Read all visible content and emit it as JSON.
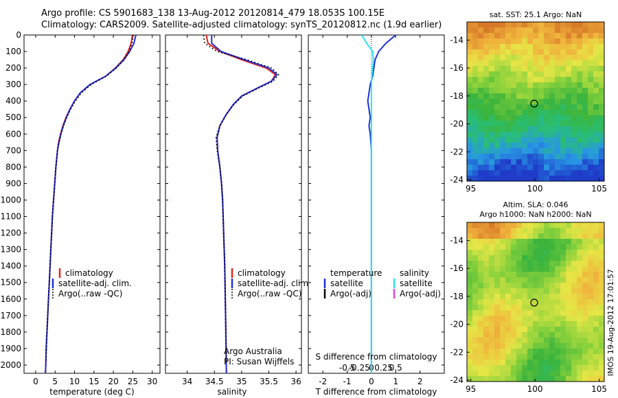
{
  "title": {
    "line1": "Argo profile: CS 5901683_138 13-Aug-2012 20120814_479 18.053S 100.15E",
    "line2": "Climatology: CARS2009. Satellite-adjusted climatology: synTS_20120812.nc (1.9d earlier)"
  },
  "colors": {
    "climatology": "#e8201c",
    "satellite": "#1f2fd6",
    "argo": "#000000",
    "satellite_salinity": "#27e6f0",
    "argo_salinity": "#e040e0"
  },
  "stamp": "IMOS 19-Aug-2012 17:01:57",
  "panels": {
    "temperature": {
      "xlabel": "temperature (deg C)",
      "legend": [
        "climatology",
        "satellite-adj. clim.",
        "Argo(..raw -QC)"
      ]
    },
    "salinity": {
      "xlabel": "salinity",
      "legend": [
        "climatology",
        "satellite-adj. clim.",
        "Argo(..raw -QC)"
      ],
      "credit1": "Argo Australia",
      "credit2": "PI: Susan Wijffels"
    },
    "difference": {
      "xlabel_bottom": "T difference from climatology",
      "xlabel_top": "S difference from climatology",
      "legend_temp_header": "temperature",
      "legend_sal_header": "salinity",
      "legend_temp": [
        "satellite",
        "Argo(-adj)"
      ],
      "legend_sal": [
        "satellite",
        "Argo(-adj)"
      ]
    }
  },
  "maps": {
    "sst": {
      "title1": "sat. SST: 25.1  Argo: NaN"
    },
    "sla": {
      "title1": "Altim. SLA: 0.046",
      "title2": "Argo h1000: NaN h2000: NaN"
    }
  },
  "chart_data": [
    {
      "type": "line",
      "name": "temperature profile",
      "xlabel": "temperature (deg C)",
      "ylabel": "",
      "xlim": [
        -3,
        32
      ],
      "ylim": [
        2050,
        0
      ],
      "xticks": [
        0,
        5,
        10,
        15,
        20,
        25,
        30
      ],
      "yticks": [
        0,
        100,
        200,
        300,
        400,
        500,
        600,
        700,
        800,
        900,
        1000,
        1100,
        1200,
        1300,
        1400,
        1500,
        1600,
        1700,
        1800,
        1900,
        2000
      ],
      "series": [
        {
          "name": "climatology",
          "points": [
            [
              24.9,
              0
            ],
            [
              24.6,
              50
            ],
            [
              23.8,
              100
            ],
            [
              22.5,
              150
            ],
            [
              20.5,
              200
            ],
            [
              18.0,
              250
            ],
            [
              14.0,
              300
            ],
            [
              11.5,
              350
            ],
            [
              10.0,
              400
            ],
            [
              8.8,
              450
            ],
            [
              7.8,
              500
            ],
            [
              7.0,
              550
            ],
            [
              6.4,
              600
            ],
            [
              5.9,
              650
            ],
            [
              5.6,
              700
            ],
            [
              5.2,
              800
            ],
            [
              4.9,
              900
            ],
            [
              4.6,
              1000
            ],
            [
              4.3,
              1100
            ],
            [
              4.1,
              1200
            ],
            [
              3.9,
              1300
            ],
            [
              3.7,
              1400
            ],
            [
              3.5,
              1500
            ],
            [
              3.3,
              1600
            ],
            [
              3.1,
              1700
            ],
            [
              2.9,
              1800
            ],
            [
              2.7,
              1900
            ],
            [
              2.6,
              2000
            ],
            [
              2.5,
              2050
            ]
          ]
        },
        {
          "name": "satellite-adj. clim.",
          "points": [
            [
              25.8,
              0
            ],
            [
              25.3,
              50
            ],
            [
              24.2,
              100
            ],
            [
              22.7,
              150
            ],
            [
              20.6,
              200
            ],
            [
              18.0,
              250
            ],
            [
              14.0,
              300
            ],
            [
              11.5,
              350
            ],
            [
              10.0,
              400
            ],
            [
              8.8,
              450
            ],
            [
              7.9,
              500
            ],
            [
              7.1,
              550
            ],
            [
              6.5,
              600
            ],
            [
              6.0,
              650
            ],
            [
              5.6,
              700
            ],
            [
              5.2,
              800
            ],
            [
              4.9,
              900
            ],
            [
              4.6,
              1000
            ],
            [
              4.3,
              1100
            ],
            [
              4.1,
              1200
            ],
            [
              3.9,
              1300
            ],
            [
              3.7,
              1400
            ],
            [
              3.5,
              1500
            ],
            [
              3.3,
              1600
            ],
            [
              3.1,
              1700
            ],
            [
              2.9,
              1800
            ],
            [
              2.7,
              1900
            ],
            [
              2.6,
              2000
            ],
            [
              2.5,
              2050
            ]
          ]
        },
        {
          "name": "Argo(..raw -QC)",
          "points": [
            [
              25.1,
              0
            ],
            [
              24.8,
              50
            ],
            [
              24.0,
              100
            ],
            [
              22.8,
              150
            ],
            [
              20.8,
              200
            ],
            [
              18.2,
              250
            ],
            [
              14.3,
              300
            ],
            [
              11.8,
              350
            ],
            [
              10.2,
              400
            ],
            [
              9.0,
              450
            ],
            [
              8.0,
              500
            ],
            [
              7.2,
              550
            ],
            [
              6.5,
              600
            ],
            [
              6.0,
              650
            ],
            [
              5.6,
              700
            ],
            [
              5.2,
              800
            ],
            [
              4.9,
              900
            ],
            [
              4.6,
              1000
            ],
            [
              4.3,
              1100
            ],
            [
              4.1,
              1200
            ],
            [
              3.9,
              1300
            ],
            [
              3.7,
              1400
            ],
            [
              3.5,
              1500
            ],
            [
              3.3,
              1600
            ],
            [
              3.1,
              1700
            ],
            [
              2.9,
              1800
            ],
            [
              2.8,
              1900
            ],
            [
              2.6,
              1980
            ]
          ]
        }
      ]
    },
    {
      "type": "line",
      "name": "salinity profile",
      "xlabel": "salinity",
      "ylabel": "",
      "xlim": [
        33.6,
        36.1
      ],
      "ylim": [
        2050,
        0
      ],
      "xticks": [
        34,
        34.5,
        35,
        35.5,
        36
      ],
      "series": [
        {
          "name": "climatology",
          "points": [
            [
              34.35,
              0
            ],
            [
              34.38,
              50
            ],
            [
              34.6,
              100
            ],
            [
              35.0,
              150
            ],
            [
              35.45,
              200
            ],
            [
              35.62,
              240
            ],
            [
              35.55,
              280
            ],
            [
              35.3,
              320
            ],
            [
              35.0,
              370
            ],
            [
              34.85,
              420
            ],
            [
              34.72,
              480
            ],
            [
              34.6,
              550
            ],
            [
              34.55,
              620
            ],
            [
              34.56,
              700
            ],
            [
              34.6,
              800
            ],
            [
              34.63,
              900
            ],
            [
              34.65,
              1000
            ],
            [
              34.67,
              1200
            ],
            [
              34.69,
              1400
            ],
            [
              34.7,
              1600
            ],
            [
              34.71,
              1800
            ],
            [
              34.72,
              2050
            ]
          ]
        },
        {
          "name": "satellite-adj. clim.",
          "points": [
            [
              34.45,
              0
            ],
            [
              34.45,
              50
            ],
            [
              34.62,
              100
            ],
            [
              35.05,
              150
            ],
            [
              35.5,
              200
            ],
            [
              35.65,
              240
            ],
            [
              35.55,
              280
            ],
            [
              35.3,
              320
            ],
            [
              35.0,
              370
            ],
            [
              34.85,
              420
            ],
            [
              34.72,
              480
            ],
            [
              34.6,
              550
            ],
            [
              34.55,
              620
            ],
            [
              34.56,
              700
            ],
            [
              34.6,
              800
            ],
            [
              34.63,
              900
            ],
            [
              34.65,
              1000
            ],
            [
              34.67,
              1200
            ],
            [
              34.69,
              1400
            ],
            [
              34.7,
              1600
            ],
            [
              34.71,
              1800
            ],
            [
              34.72,
              2050
            ]
          ]
        },
        {
          "name": "Argo(..raw -QC)",
          "points": [
            [
              34.3,
              0
            ],
            [
              34.32,
              50
            ],
            [
              34.55,
              100
            ],
            [
              35.1,
              150
            ],
            [
              35.55,
              200
            ],
            [
              35.68,
              240
            ],
            [
              35.58,
              280
            ],
            [
              35.32,
              320
            ],
            [
              35.02,
              370
            ],
            [
              34.86,
              420
            ],
            [
              34.72,
              480
            ],
            [
              34.6,
              550
            ],
            [
              34.53,
              620
            ],
            [
              34.55,
              700
            ],
            [
              34.6,
              800
            ],
            [
              34.63,
              900
            ],
            [
              34.65,
              1000
            ],
            [
              34.67,
              1200
            ],
            [
              34.69,
              1400
            ],
            [
              34.7,
              1600
            ],
            [
              34.71,
              1800
            ],
            [
              34.72,
              1980
            ]
          ]
        }
      ]
    },
    {
      "type": "line",
      "name": "difference from climatology",
      "xlabel": "T difference from climatology",
      "xlabel_top": "S difference from climatology",
      "xlim": [
        -2.6,
        3.0
      ],
      "ylim": [
        2050,
        0
      ],
      "xticks": [
        -2,
        -1,
        0,
        1,
        2
      ],
      "xticks_top": [
        -0.5,
        -0.25,
        0,
        0.25,
        0.5
      ],
      "series": [
        {
          "name": "temperature satellite",
          "points": [
            [
              1.0,
              0
            ],
            [
              0.6,
              50
            ],
            [
              0.3,
              100
            ],
            [
              0.15,
              150
            ],
            [
              0.1,
              200
            ],
            [
              0.05,
              250
            ],
            [
              -0.05,
              300
            ],
            [
              -0.1,
              350
            ],
            [
              -0.15,
              400
            ],
            [
              -0.1,
              450
            ],
            [
              -0.05,
              500
            ],
            [
              -0.1,
              550
            ],
            [
              -0.05,
              600
            ],
            [
              0.0,
              700
            ],
            [
              0.0,
              800
            ],
            [
              0.0,
              1000
            ],
            [
              0.0,
              1500
            ],
            [
              0.0,
              2050
            ]
          ]
        },
        {
          "name": "salinity satellite",
          "points": [
            [
              -0.4,
              0
            ],
            [
              -0.2,
              50
            ],
            [
              0.05,
              100
            ],
            [
              0.08,
              150
            ],
            [
              0.05,
              200
            ],
            [
              0.02,
              250
            ],
            [
              0.0,
              300
            ],
            [
              0.0,
              400
            ],
            [
              0.0,
              600
            ],
            [
              0.0,
              1000
            ],
            [
              0.0,
              2050
            ]
          ]
        }
      ]
    }
  ]
}
